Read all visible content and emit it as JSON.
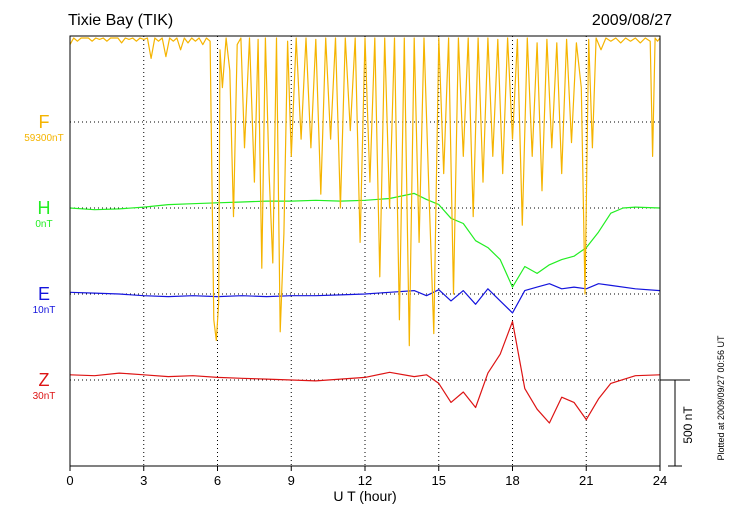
{
  "chart_data": {
    "type": "line",
    "title": "Tixie Bay (TIK)",
    "date": "2009/08/27",
    "xlabel": "U T (hour)",
    "xlim": [
      0,
      24
    ],
    "xticks": [
      "0",
      "3",
      "6",
      "9",
      "12",
      "15",
      "18",
      "21",
      "24"
    ],
    "grid": true,
    "scale_bar_label": "500 nT",
    "scale_bar_nT": 500,
    "footer": "Plotted at 2009/09/27 00:56 UT",
    "series": [
      {
        "name": "F",
        "baseline_label": "59300nT",
        "color": "#f5b400",
        "points": [
          [
            0,
            450
          ],
          [
            0.15,
            530
          ],
          [
            0.3,
            470
          ],
          [
            0.45,
            560
          ],
          [
            0.6,
            500
          ],
          [
            0.75,
            540
          ],
          [
            0.9,
            470
          ],
          [
            1.05,
            560
          ],
          [
            1.2,
            480
          ],
          [
            1.35,
            540
          ],
          [
            1.5,
            470
          ],
          [
            1.65,
            560
          ],
          [
            1.8,
            490
          ],
          [
            1.95,
            540
          ],
          [
            2.1,
            460
          ],
          [
            2.25,
            560
          ],
          [
            2.4,
            480
          ],
          [
            2.55,
            540
          ],
          [
            2.7,
            470
          ],
          [
            2.85,
            560
          ],
          [
            3.0,
            480
          ],
          [
            3.15,
            550
          ],
          [
            3.3,
            370
          ],
          [
            3.45,
            540
          ],
          [
            3.6,
            470
          ],
          [
            3.75,
            560
          ],
          [
            3.9,
            380
          ],
          [
            4.05,
            540
          ],
          [
            4.2,
            470
          ],
          [
            4.35,
            560
          ],
          [
            4.5,
            420
          ],
          [
            4.65,
            540
          ],
          [
            4.8,
            460
          ],
          [
            4.95,
            560
          ],
          [
            5.1,
            470
          ],
          [
            5.25,
            540
          ],
          [
            5.4,
            450
          ],
          [
            5.55,
            560
          ],
          [
            5.7,
            470
          ],
          [
            5.85,
            -1150
          ],
          [
            5.95,
            -1270
          ],
          [
            6.05,
            -1050
          ],
          [
            6.1,
            420
          ],
          [
            6.2,
            200
          ],
          [
            6.35,
            500
          ],
          [
            6.5,
            300
          ],
          [
            6.65,
            -550
          ],
          [
            6.8,
            450
          ],
          [
            6.95,
            500
          ],
          [
            7.1,
            -150
          ],
          [
            7.3,
            550
          ],
          [
            7.5,
            -350
          ],
          [
            7.65,
            480
          ],
          [
            7.8,
            -850
          ],
          [
            7.95,
            520
          ],
          [
            8.1,
            -300
          ],
          [
            8.25,
            -820
          ],
          [
            8.4,
            540
          ],
          [
            8.55,
            -1220
          ],
          [
            8.7,
            -650
          ],
          [
            8.85,
            470
          ],
          [
            9.0,
            -200
          ],
          [
            9.2,
            560
          ],
          [
            9.4,
            -100
          ],
          [
            9.6,
            520
          ],
          [
            9.8,
            -150
          ],
          [
            10.0,
            480
          ],
          [
            10.2,
            -420
          ],
          [
            10.4,
            530
          ],
          [
            10.6,
            -100
          ],
          [
            10.8,
            520
          ],
          [
            11.0,
            -500
          ],
          [
            11.2,
            540
          ],
          [
            11.4,
            -50
          ],
          [
            11.6,
            500
          ],
          [
            11.8,
            -700
          ],
          [
            12.0,
            540
          ],
          [
            12.2,
            -350
          ],
          [
            12.4,
            560
          ],
          [
            12.6,
            -900
          ],
          [
            12.8,
            580
          ],
          [
            13.0,
            -500
          ],
          [
            13.2,
            560
          ],
          [
            13.4,
            -1150
          ],
          [
            13.6,
            600
          ],
          [
            13.8,
            -1300
          ],
          [
            14.0,
            560
          ],
          [
            14.2,
            -700
          ],
          [
            14.4,
            580
          ],
          [
            14.6,
            -400
          ],
          [
            14.8,
            -1230
          ],
          [
            15.0,
            540
          ],
          [
            15.2,
            -300
          ],
          [
            15.4,
            520
          ],
          [
            15.6,
            -1000
          ],
          [
            15.8,
            540
          ],
          [
            16.0,
            -200
          ],
          [
            16.2,
            520
          ],
          [
            16.4,
            -550
          ],
          [
            16.6,
            500
          ],
          [
            16.8,
            -350
          ],
          [
            17.0,
            520
          ],
          [
            17.2,
            -200
          ],
          [
            17.4,
            480
          ],
          [
            17.6,
            -300
          ],
          [
            17.8,
            500
          ],
          [
            18.0,
            -100
          ],
          [
            18.2,
            480
          ],
          [
            18.4,
            -600
          ],
          [
            18.6,
            500
          ],
          [
            18.8,
            -200
          ],
          [
            19.0,
            460
          ],
          [
            19.2,
            -400
          ],
          [
            19.4,
            480
          ],
          [
            19.6,
            -150
          ],
          [
            19.8,
            460
          ],
          [
            20.0,
            -300
          ],
          [
            20.2,
            480
          ],
          [
            20.4,
            -120
          ],
          [
            20.6,
            460
          ],
          [
            20.8,
            200
          ],
          [
            20.95,
            -1000
          ],
          [
            21.1,
            480
          ],
          [
            21.25,
            -150
          ],
          [
            21.4,
            500
          ],
          [
            21.6,
            420
          ],
          [
            21.8,
            540
          ],
          [
            22.0,
            470
          ],
          [
            22.2,
            530
          ],
          [
            22.4,
            460
          ],
          [
            22.6,
            520
          ],
          [
            22.8,
            470
          ],
          [
            23.0,
            540
          ],
          [
            23.2,
            460
          ],
          [
            23.4,
            530
          ],
          [
            23.6,
            470
          ],
          [
            23.7,
            -200
          ],
          [
            23.8,
            540
          ],
          [
            23.9,
            470
          ],
          [
            24.0,
            520
          ]
        ]
      },
      {
        "name": "H",
        "baseline_label": "0nT",
        "color": "#22ee22",
        "points": [
          [
            0,
            0
          ],
          [
            1,
            -10
          ],
          [
            2,
            -5
          ],
          [
            3,
            5
          ],
          [
            4,
            20
          ],
          [
            5,
            25
          ],
          [
            6,
            30
          ],
          [
            7,
            35
          ],
          [
            8,
            40
          ],
          [
            9,
            40
          ],
          [
            10,
            45
          ],
          [
            11,
            40
          ],
          [
            12,
            45
          ],
          [
            13,
            55
          ],
          [
            14,
            85
          ],
          [
            14.5,
            50
          ],
          [
            15,
            20
          ],
          [
            15.5,
            -60
          ],
          [
            16,
            -90
          ],
          [
            16.5,
            -190
          ],
          [
            17,
            -230
          ],
          [
            17.5,
            -300
          ],
          [
            18,
            -460
          ],
          [
            18.5,
            -340
          ],
          [
            19,
            -380
          ],
          [
            19.5,
            -330
          ],
          [
            20,
            -300
          ],
          [
            20.5,
            -280
          ],
          [
            21,
            -230
          ],
          [
            21.5,
            -140
          ],
          [
            22,
            -30
          ],
          [
            22.5,
            0
          ],
          [
            23,
            5
          ],
          [
            24,
            0
          ]
        ]
      },
      {
        "name": "E",
        "baseline_label": "10nT",
        "color": "#1414dd",
        "points": [
          [
            0,
            10
          ],
          [
            1,
            5
          ],
          [
            2,
            0
          ],
          [
            3,
            -10
          ],
          [
            4,
            -15
          ],
          [
            5,
            -10
          ],
          [
            6,
            -15
          ],
          [
            7,
            -10
          ],
          [
            8,
            -15
          ],
          [
            9,
            -10
          ],
          [
            10,
            -10
          ],
          [
            11,
            -5
          ],
          [
            12,
            0
          ],
          [
            13,
            10
          ],
          [
            14,
            20
          ],
          [
            14.5,
            -10
          ],
          [
            15,
            25
          ],
          [
            15.5,
            -40
          ],
          [
            16,
            20
          ],
          [
            16.5,
            -60
          ],
          [
            17,
            30
          ],
          [
            17.5,
            -40
          ],
          [
            18,
            -110
          ],
          [
            18.5,
            20
          ],
          [
            19,
            40
          ],
          [
            19.5,
            60
          ],
          [
            20,
            30
          ],
          [
            20.5,
            40
          ],
          [
            21,
            30
          ],
          [
            21.5,
            60
          ],
          [
            22,
            50
          ],
          [
            23,
            30
          ],
          [
            24,
            20
          ]
        ]
      },
      {
        "name": "Z",
        "baseline_label": "30nT",
        "color": "#dd1414",
        "points": [
          [
            0,
            30
          ],
          [
            1,
            25
          ],
          [
            2,
            40
          ],
          [
            3,
            30
          ],
          [
            4,
            20
          ],
          [
            5,
            25
          ],
          [
            6,
            15
          ],
          [
            7,
            10
          ],
          [
            8,
            5
          ],
          [
            9,
            0
          ],
          [
            10,
            -5
          ],
          [
            11,
            5
          ],
          [
            12,
            15
          ],
          [
            13,
            45
          ],
          [
            14,
            20
          ],
          [
            14.5,
            30
          ],
          [
            15,
            -20
          ],
          [
            15.5,
            -130
          ],
          [
            16,
            -70
          ],
          [
            16.5,
            -160
          ],
          [
            17,
            40
          ],
          [
            17.5,
            150
          ],
          [
            18,
            340
          ],
          [
            18.5,
            -50
          ],
          [
            19,
            -170
          ],
          [
            19.5,
            -250
          ],
          [
            20,
            -100
          ],
          [
            20.5,
            -130
          ],
          [
            21,
            -230
          ],
          [
            21.5,
            -110
          ],
          [
            22,
            -20
          ],
          [
            23,
            25
          ],
          [
            24,
            30
          ]
        ]
      }
    ]
  }
}
